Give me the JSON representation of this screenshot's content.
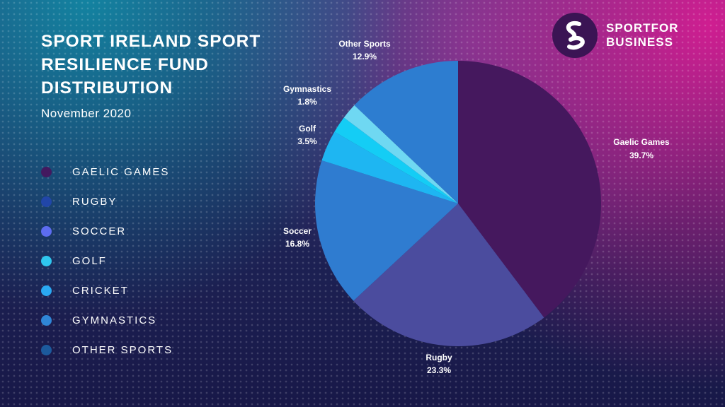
{
  "title": "Sport Ireland Sport Resilience Fund Distribution",
  "subtitle": "November 2020",
  "logo": {
    "line1": "SPORTFOR",
    "line2": "BUSINESS",
    "mark_color": "#3b1454"
  },
  "legend": [
    {
      "label": "Gaelic Games",
      "color": "#43195f"
    },
    {
      "label": "Rugby",
      "color": "#2146a8"
    },
    {
      "label": "Soccer",
      "color": "#5d6cf0"
    },
    {
      "label": "Golf",
      "color": "#2fc6ee"
    },
    {
      "label": "Cricket",
      "color": "#2aa9f2"
    },
    {
      "label": "Gymnastics",
      "color": "#2f86d6"
    },
    {
      "label": "Other Sports",
      "color": "#1c5a9c"
    }
  ],
  "chart_data": {
    "type": "pie",
    "title": "Sport Ireland Sport Resilience Fund Distribution",
    "subtitle": "November 2020",
    "slices": [
      {
        "label": "Gaelic Games",
        "value": 39.7,
        "value_label": "39.7%",
        "color": "#45185e"
      },
      {
        "label": "Rugby",
        "value": 23.3,
        "value_label": "23.3%",
        "color": "#4b4c9e"
      },
      {
        "label": "Soccer",
        "value": 16.8,
        "value_label": "16.8%",
        "color": "#2f7cd0"
      },
      {
        "label": "Golf",
        "value": 3.5,
        "value_label": "3.5%",
        "color": "#1eb6f2"
      },
      {
        "label": "Cricket",
        "value": 1.9,
        "value_label": "",
        "color": "#14cdf5"
      },
      {
        "label": "Gymnastics",
        "value": 1.8,
        "value_label": "1.8%",
        "color": "#6fd8f2"
      },
      {
        "label": "Other Sports",
        "value": 12.9,
        "value_label": "12.9%",
        "color": "#2d7dd0"
      }
    ],
    "legend_position": "left"
  }
}
